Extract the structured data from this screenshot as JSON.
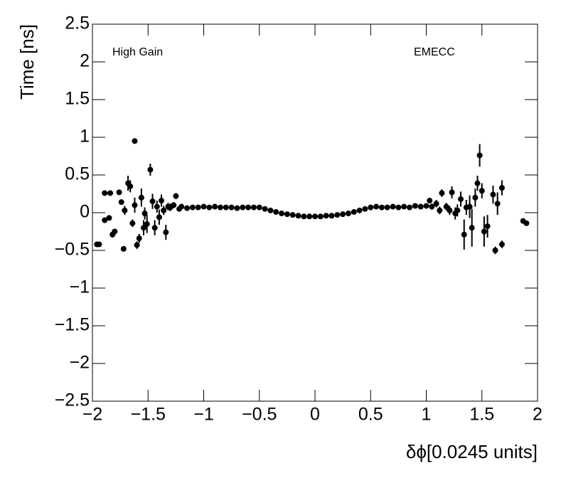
{
  "chart_data": {
    "type": "scatter",
    "xlabel": "δϕ[0.0245 units]",
    "ylabel": "Time [ns]",
    "annotations": [
      "High Gain",
      "EMECC"
    ],
    "xlim": [
      -2,
      2
    ],
    "ylim": [
      -2.5,
      2.5
    ],
    "xticks": [
      {
        "value": -2,
        "label": "−2"
      },
      {
        "value": -1.5,
        "label": "−1.5"
      },
      {
        "value": -1,
        "label": "−1"
      },
      {
        "value": -0.5,
        "label": "−0.5"
      },
      0,
      0.5,
      1,
      1.5,
      2
    ],
    "yticks": [
      {
        "value": -2.5,
        "label": "−2.5"
      },
      {
        "value": -2,
        "label": "−2"
      },
      {
        "value": -1.5,
        "label": "−1.5"
      },
      {
        "value": -1,
        "label": "−1"
      },
      {
        "value": -0.5,
        "label": "−0.5"
      },
      0,
      0.5,
      1,
      1.5,
      2,
      2.5
    ],
    "grid": false,
    "series": [
      {
        "color": "#000000",
        "x": [
          -1.96,
          -1.94,
          -1.89,
          -1.89,
          -1.84,
          -1.85,
          -1.82,
          -1.8,
          -1.76,
          -1.74,
          -1.72,
          -1.71,
          -1.68,
          -1.66,
          -1.64,
          -1.62,
          -1.62,
          -1.6,
          -1.58,
          -1.56,
          -1.54,
          -1.53,
          -1.51,
          -1.48,
          -1.46,
          -1.44,
          -1.42,
          -1.4,
          -1.38,
          -1.36,
          -1.34,
          -1.32,
          -1.3,
          -1.27,
          -1.25,
          -1.22,
          -1.2,
          -1.15,
          -1.1,
          -1.05,
          -1,
          -0.95,
          -0.9,
          -0.85,
          -0.8,
          -0.75,
          -0.7,
          -0.65,
          -0.6,
          -0.55,
          -0.5,
          -0.45,
          -0.4,
          -0.35,
          -0.3,
          -0.25,
          -0.2,
          -0.15,
          -0.1,
          -0.05,
          0,
          0.05,
          0.1,
          0.15,
          0.2,
          0.25,
          0.3,
          0.35,
          0.4,
          0.45,
          0.5,
          0.55,
          0.6,
          0.65,
          0.7,
          0.75,
          0.8,
          0.85,
          0.9,
          0.95,
          1,
          1.03,
          1.05,
          1.09,
          1.12,
          1.14,
          1.18,
          1.21,
          1.23,
          1.26,
          1.28,
          1.31,
          1.34,
          1.36,
          1.39,
          1.41,
          1.44,
          1.46,
          1.48,
          1.5,
          1.52,
          1.55,
          1.6,
          1.62,
          1.64,
          1.68,
          1.68,
          1.87,
          1.9
        ],
        "values": [
          -0.42,
          -0.42,
          -0.1,
          0.26,
          0.26,
          -0.07,
          -0.29,
          -0.25,
          0.27,
          0.14,
          -0.48,
          0.03,
          0.39,
          0.35,
          -0.14,
          0.1,
          0.95,
          -0.43,
          -0.34,
          0.2,
          -0.2,
          -0.01,
          -0.15,
          0.57,
          0.15,
          -0.2,
          0.08,
          -0.06,
          0.16,
          0.03,
          -0.26,
          0.08,
          0.07,
          0.1,
          0.22,
          0.05,
          0.08,
          0.06,
          0.07,
          0.07,
          0.08,
          0.07,
          0.08,
          0.07,
          0.07,
          0.07,
          0.06,
          0.07,
          0.07,
          0.07,
          0.07,
          0.05,
          0.03,
          0.01,
          -0.01,
          -0.02,
          -0.03,
          -0.04,
          -0.05,
          -0.05,
          -0.05,
          -0.05,
          -0.04,
          -0.04,
          -0.03,
          -0.02,
          -0.01,
          0.01,
          0.03,
          0.05,
          0.07,
          0.08,
          0.07,
          0.07,
          0.08,
          0.07,
          0.08,
          0.07,
          0.09,
          0.08,
          0.09,
          0.16,
          0.08,
          0.12,
          0.03,
          0.26,
          0.08,
          0.03,
          0.27,
          -0.01,
          0.03,
          0.18,
          -0.29,
          0.07,
          0.08,
          -0.2,
          0.2,
          0.39,
          0.76,
          0.29,
          -0.25,
          -0.18,
          0.24,
          -0.5,
          0.12,
          0.33,
          -0.42,
          -0.11,
          -0.14
        ],
        "errors": [
          0.01,
          0.01,
          0.02,
          0.02,
          0.02,
          0.03,
          0.04,
          0.03,
          0.02,
          0.03,
          0.02,
          0.06,
          0.1,
          0.08,
          0.05,
          0.1,
          0.01,
          0.05,
          0.06,
          0.12,
          0.1,
          0.08,
          0.12,
          0.08,
          0.1,
          0.1,
          0.08,
          0.1,
          0.08,
          0.06,
          0.1,
          0.05,
          0.05,
          0.04,
          0.04,
          0.03,
          0.03,
          0.03,
          0.03,
          0.03,
          0.02,
          0.01,
          0.01,
          0.01,
          0.01,
          0.01,
          0.01,
          0.01,
          0.01,
          0.01,
          0.01,
          0.01,
          0.01,
          0.01,
          0.01,
          0.01,
          0.01,
          0.01,
          0.01,
          0.01,
          0.01,
          0.01,
          0.01,
          0.01,
          0.01,
          0.01,
          0.01,
          0.01,
          0.01,
          0.01,
          0.01,
          0.01,
          0.01,
          0.01,
          0.01,
          0.01,
          0.01,
          0.02,
          0.02,
          0.02,
          0.02,
          0.03,
          0.04,
          0.05,
          0.05,
          0.05,
          0.05,
          0.06,
          0.08,
          0.08,
          0.08,
          0.1,
          0.2,
          0.1,
          0.15,
          0.25,
          0.12,
          0.1,
          0.15,
          0.1,
          0.2,
          0.15,
          0.12,
          0.05,
          0.15,
          0.1,
          0.05,
          0.01,
          0.01
        ]
      }
    ]
  }
}
